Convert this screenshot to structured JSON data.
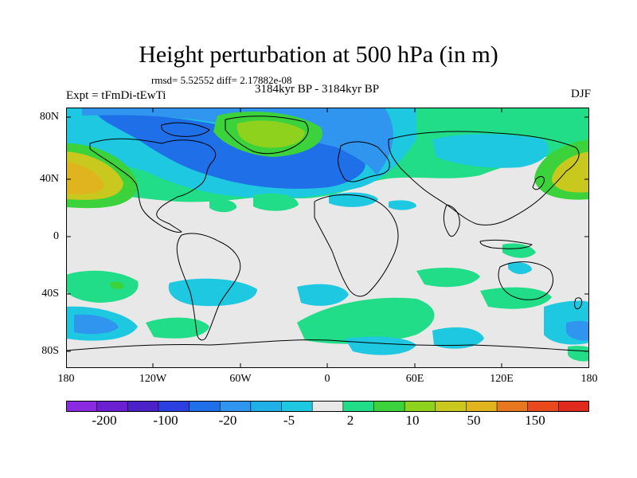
{
  "title": "Height perturbation at 500 hPa (in m)",
  "stats": "rmsd= 5.52552 diff= 2.17882e-08",
  "experiment": "Expt = tFmDi-tEwTi",
  "period": "3184kyr BP - 3184kyr BP",
  "season": "DJF",
  "lat_labels": [
    "80N",
    "40N",
    "0",
    "40S",
    "80S"
  ],
  "lon_labels": [
    "180",
    "120W",
    "60W",
    "0",
    "60E",
    "120E",
    "180"
  ],
  "colorbar": {
    "labels": [
      "-200",
      "-100",
      "-20",
      "-5",
      "2",
      "10",
      "50",
      "150"
    ],
    "colors": [
      "#8a2be2",
      "#6a1fd0",
      "#4b22c8",
      "#2c3fe0",
      "#1f6fe8",
      "#2f95ee",
      "#1fb0e8",
      "#1ec8e0",
      "#e8e8e8",
      "#22dd88",
      "#3cd23c",
      "#8fd21e",
      "#c8c81e",
      "#e0b41e",
      "#e87820",
      "#e84a1e",
      "#e02a1e"
    ]
  },
  "palette": {
    "neutral": "#e8e8e8",
    "light_blue": "#1ec8e0",
    "mid_blue": "#2f95ee",
    "blue": "#1f6fe8",
    "light_green": "#22dd88",
    "green": "#3cd23c",
    "yellow_green": "#8fd21e",
    "olive": "#c8c81e",
    "orange": "#e0b41e"
  }
}
